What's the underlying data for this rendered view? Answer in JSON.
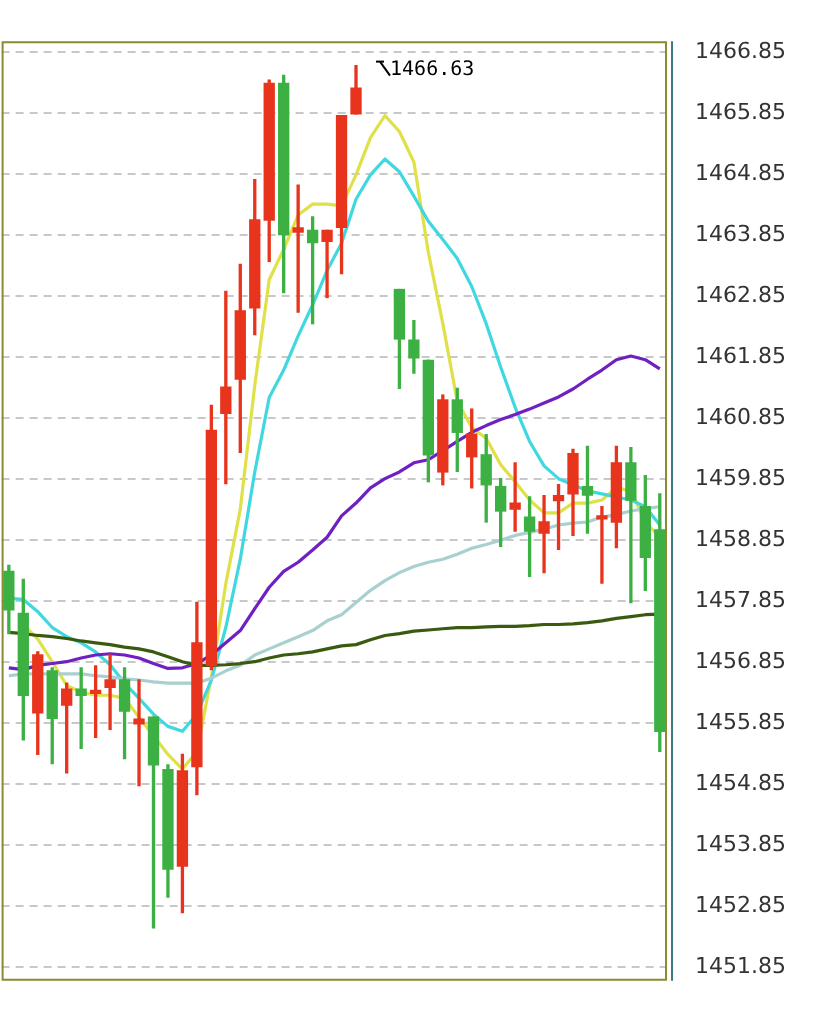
{
  "chart_data": {
    "type": "candlestick",
    "categories": [
      null,
      null,
      null,
      null,
      null,
      null,
      null,
      null,
      null,
      null,
      null,
      null,
      null,
      null,
      null,
      null,
      null,
      null,
      null,
      null,
      null,
      null,
      null,
      null,
      null,
      null,
      null,
      null,
      null,
      null,
      null,
      null,
      null,
      null,
      null,
      null,
      null,
      null,
      null,
      null,
      null,
      null,
      null,
      null,
      null,
      null
    ],
    "ohlc": [
      [
        1458.34,
        1458.44,
        1457.32,
        1457.71
      ],
      [
        1457.65,
        1458.21,
        1455.58,
        1456.31
      ],
      [
        1456.02,
        1457.02,
        1455.34,
        1456.97
      ],
      [
        1456.71,
        1456.76,
        1455.19,
        1455.93
      ],
      [
        1456.15,
        1456.51,
        1455.04,
        1456.41
      ],
      [
        1456.41,
        1456.76,
        1455.44,
        1456.31
      ],
      [
        1456.34,
        1456.79,
        1455.62,
        1456.39
      ],
      [
        1456.44,
        1456.97,
        1455.75,
        1456.56
      ],
      [
        1456.56,
        1456.76,
        1455.27,
        1456.05
      ],
      [
        1455.84,
        1456.56,
        1454.83,
        1455.92
      ],
      [
        1455.95,
        1455.95,
        1452.5,
        1455.17
      ],
      [
        1455.09,
        1455.17,
        1453.0,
        1453.46
      ],
      [
        1453.51,
        1455.34,
        1452.75,
        1455.07
      ],
      [
        1455.14,
        1457.83,
        1454.68,
        1457.17
      ],
      [
        1456.8,
        1461.06,
        1456.73,
        1460.65
      ],
      [
        1460.93,
        1462.93,
        1459.78,
        1461.36
      ],
      [
        1461.49,
        1463.37,
        1460.29,
        1462.61
      ],
      [
        1462.66,
        1464.76,
        1462.22,
        1464.1
      ],
      [
        1464.1,
        1466.39,
        1463.42,
        1466.34
      ],
      [
        1466.34,
        1466.47,
        1462.91,
        1463.86
      ],
      [
        1463.9,
        1464.67,
        1462.59,
        1463.97
      ],
      [
        1463.93,
        1464.15,
        1462.4,
        1463.73
      ],
      [
        1463.75,
        1463.93,
        1462.83,
        1463.93
      ],
      [
        1463.98,
        1465.81,
        1463.22,
        1465.81
      ],
      [
        1465.84,
        1466.63,
        1465.84,
        1466.26
      ],
      null,
      null,
      [
        1462.96,
        1462.96,
        1461.34,
        1462.15
      ],
      [
        1462.13,
        1462.45,
        1461.59,
        1461.84
      ],
      [
        1461.8,
        1461.8,
        1459.81,
        1460.25
      ],
      [
        1459.97,
        1461.23,
        1459.76,
        1461.15
      ],
      [
        1461.15,
        1461.34,
        1459.98,
        1460.62
      ],
      [
        1460.22,
        1461.0,
        1459.71,
        1460.59
      ],
      [
        1460.25,
        1460.58,
        1459.15,
        1459.76
      ],
      [
        1459.73,
        1459.86,
        1458.75,
        1459.33
      ],
      [
        1459.36,
        1460.12,
        1459.0,
        1459.46
      ],
      [
        1459.23,
        1459.56,
        1458.26,
        1459.0
      ],
      [
        1458.97,
        1459.58,
        1458.32,
        1459.15
      ],
      [
        1459.5,
        1459.76,
        1458.7,
        1459.58
      ],
      [
        1459.61,
        1460.34,
        1458.93,
        1460.27
      ],
      [
        1459.73,
        1460.39,
        1458.97,
        1459.59
      ],
      [
        1459.2,
        1459.4,
        1458.15,
        1459.25
      ],
      [
        1459.15,
        1460.39,
        1458.73,
        1460.12
      ],
      [
        1460.12,
        1460.37,
        1457.83,
        1459.51
      ],
      [
        1459.4,
        1459.91,
        1458.03,
        1458.57
      ],
      [
        1459.02,
        1459.61,
        1455.39,
        1455.72
      ]
    ],
    "colors": [
      "#3cb043",
      "#3cb043",
      "#e8341c",
      "#3cb043",
      "#e8341c",
      "#3cb043",
      "#e8341c",
      "#e8341c",
      "#3cb043",
      "#e8341c",
      "#3cb043",
      "#3cb043",
      "#e8341c",
      "#e8341c",
      "#e8341c",
      "#e8341c",
      "#e8341c",
      "#e8341c",
      "#e8341c",
      "#3cb043",
      "#e8341c",
      "#3cb043",
      "#e8341c",
      "#e8341c",
      "#e8341c",
      null,
      null,
      "#3cb043",
      "#3cb043",
      "#3cb043",
      "#e8341c",
      "#3cb043",
      "#e8341c",
      "#3cb043",
      "#3cb043",
      "#e8341c",
      "#3cb043",
      "#e8341c",
      "#e8341c",
      "#e8341c",
      "#3cb043",
      "#e8341c",
      "#e8341c",
      "#3cb043",
      "#3cb043",
      "#3cb043"
    ],
    "series": [
      {
        "type": "line",
        "color": "#3a5a10",
        "values": [
          1457.34,
          1457.32,
          1457.29,
          1457.27,
          1457.24,
          1457.2,
          1457.17,
          1457.14,
          1457.1,
          1457.07,
          1457.02,
          1456.94,
          1456.86,
          1456.8,
          1456.8,
          1456.81,
          1456.83,
          1456.86,
          1456.92,
          1456.97,
          1456.99,
          1457.02,
          1457.07,
          1457.12,
          1457.14,
          1457.22,
          1457.29,
          1457.32,
          1457.36,
          1457.38,
          1457.4,
          1457.42,
          1457.42,
          1457.43,
          1457.44,
          1457.44,
          1457.45,
          1457.47,
          1457.47,
          1457.48,
          1457.5,
          1457.53,
          1457.57,
          1457.6,
          1457.63,
          1457.64
        ]
      },
      {
        "type": "line",
        "color": "#a8d0d0",
        "values": [
          1456.63,
          1456.66,
          1456.66,
          1456.66,
          1456.66,
          1456.66,
          1456.63,
          1456.61,
          1456.58,
          1456.56,
          1456.53,
          1456.51,
          1456.51,
          1456.51,
          1456.59,
          1456.71,
          1456.8,
          1456.97,
          1457.07,
          1457.17,
          1457.27,
          1457.37,
          1457.53,
          1457.63,
          1457.83,
          1458.03,
          1458.19,
          1458.32,
          1458.42,
          1458.49,
          1458.54,
          1458.62,
          1458.72,
          1458.78,
          1458.85,
          1458.93,
          1458.98,
          1459.03,
          1459.1,
          1459.13,
          1459.15,
          1459.23,
          1459.27,
          1459.33,
          1459.37,
          1459.4
        ]
      },
      {
        "type": "line",
        "color": "#7020c0",
        "values": [
          1456.76,
          1456.73,
          1456.8,
          1456.83,
          1456.86,
          1456.92,
          1456.97,
          1456.99,
          1456.97,
          1456.92,
          1456.83,
          1456.75,
          1456.76,
          1456.83,
          1456.97,
          1457.17,
          1457.37,
          1457.73,
          1458.08,
          1458.34,
          1458.49,
          1458.69,
          1458.9,
          1459.25,
          1459.46,
          1459.71,
          1459.86,
          1459.97,
          1460.12,
          1460.17,
          1460.32,
          1460.47,
          1460.62,
          1460.73,
          1460.83,
          1460.91,
          1461.0,
          1461.1,
          1461.2,
          1461.33,
          1461.49,
          1461.64,
          1461.81,
          1461.87,
          1461.81,
          1461.66
        ]
      },
      {
        "type": "line",
        "color": "#40d8e0",
        "values": [
          1457.9,
          1457.88,
          1457.68,
          1457.42,
          1457.27,
          1457.17,
          1457.02,
          1456.81,
          1456.51,
          1456.26,
          1456.0,
          1455.8,
          1455.72,
          1456.0,
          1456.56,
          1457.42,
          1458.54,
          1459.97,
          1461.19,
          1461.64,
          1462.2,
          1462.71,
          1463.27,
          1463.72,
          1464.44,
          1464.84,
          1465.1,
          1464.89,
          1464.49,
          1464.08,
          1463.78,
          1463.47,
          1463.01,
          1462.4,
          1461.69,
          1461.03,
          1460.47,
          1460.07,
          1459.86,
          1459.76,
          1459.66,
          1459.61,
          1459.56,
          1459.51,
          1459.4,
          1459.1
        ]
      },
      {
        "type": "line",
        "color": "#e0e048",
        "values": [
          null,
          1457.47,
          1457.23,
          1456.86,
          1456.47,
          1456.36,
          1456.31,
          1456.31,
          1456.26,
          1455.95,
          1455.65,
          1455.34,
          1455.1,
          1455.39,
          1456.61,
          1458.14,
          1459.36,
          1461.39,
          1463.12,
          1463.62,
          1464.18,
          1464.36,
          1464.36,
          1464.33,
          1464.84,
          1465.45,
          1465.81,
          1465.55,
          1465.05,
          1463.57,
          1462.4,
          1461.13,
          1460.7,
          1460.52,
          1460.09,
          1459.81,
          1459.51,
          1459.3,
          1459.3,
          1459.46,
          1459.46,
          1459.51,
          1459.71,
          1459.66,
          1459.15,
          1458.9
        ]
      }
    ],
    "ylim": [
      1451.63,
      1467.03
    ],
    "yticks": [
      1451.85,
      1452.85,
      1453.85,
      1454.85,
      1455.85,
      1456.85,
      1457.85,
      1458.85,
      1459.85,
      1460.85,
      1461.85,
      1462.85,
      1463.85,
      1464.85,
      1465.85,
      1466.85
    ],
    "annotations": [
      "1466.63"
    ],
    "grid": "y",
    "tick_labels": "y",
    "legend": false,
    "marker": "none",
    "line_style": "solid"
  }
}
